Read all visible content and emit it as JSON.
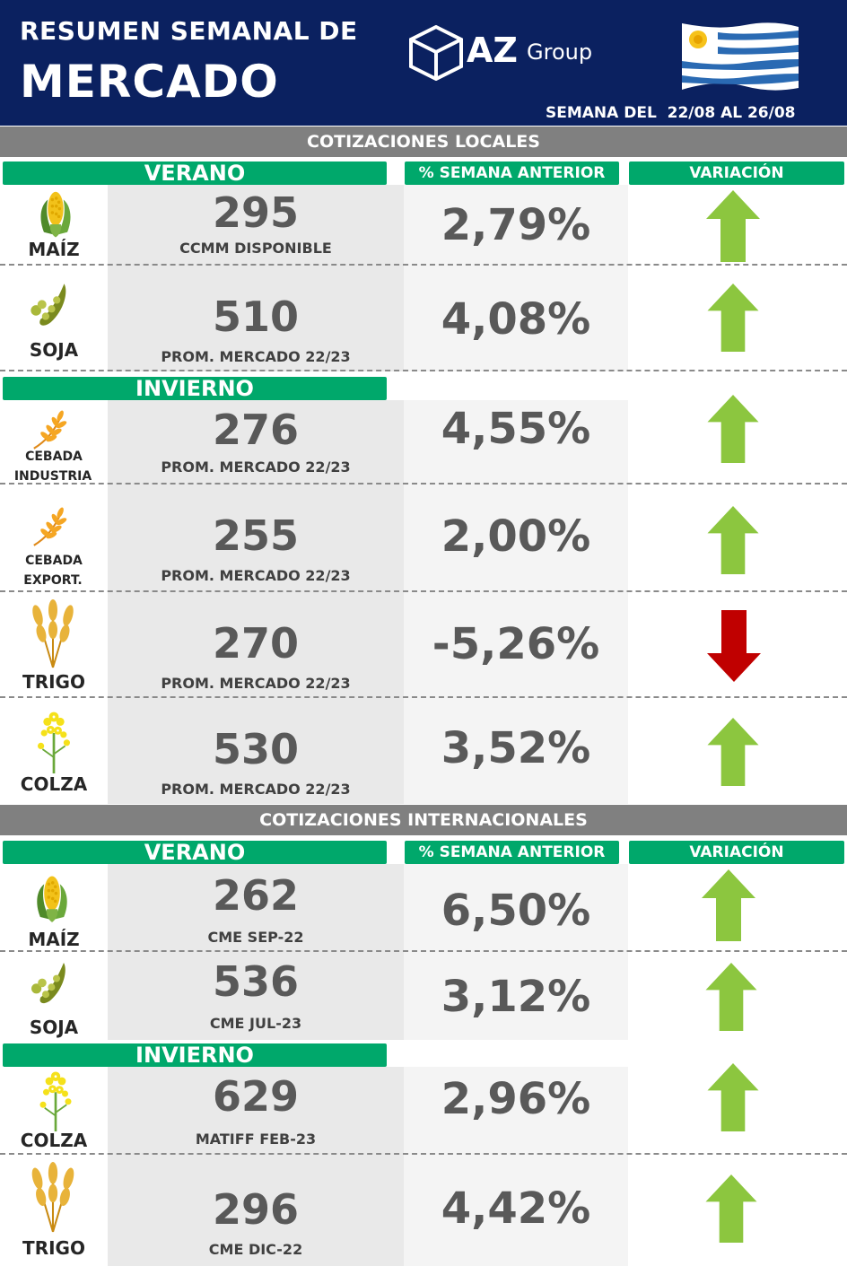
{
  "header": {
    "title_line1": "RESUMEN SEMANAL DE",
    "title_line2": "MERCADO",
    "brand_main": "AZ",
    "brand_sub": "Group",
    "week": "SEMANA DEL  22/08 AL 26/08",
    "flag_icon": "uruguay-flag-icon"
  },
  "colors": {
    "header_bg": "#0b2160",
    "green": "#00a86b",
    "section_gray": "#808080",
    "up": "#8cc63f",
    "down": "#c00000"
  },
  "local": {
    "section_title": "COTIZACIONES LOCALES",
    "season_verano": "VERANO",
    "season_invierno": "INVIERNO",
    "col_pct": "% SEMANA ANTERIOR",
    "col_var": "VARIACIÓN",
    "rows": [
      {
        "crop": "MAÍZ",
        "icon": "corn-icon",
        "price": "295",
        "ref": "CCMM DISPONIBLE",
        "pct": "2,79%",
        "direction": "up"
      },
      {
        "crop": "SOJA",
        "icon": "soy-icon",
        "price": "510",
        "ref": "PROM. MERCADO 22/23",
        "pct": "4,08%",
        "direction": "up"
      },
      {
        "crop_l1": "CEBADA",
        "crop_l2": "INDUSTRIA",
        "icon": "barley-icon",
        "price": "276",
        "ref": "PROM. MERCADO 22/23",
        "pct": "4,55%",
        "direction": "up"
      },
      {
        "crop_l1": "CEBADA",
        "crop_l2": "EXPORT.",
        "icon": "barley-icon",
        "price": "255",
        "ref": "PROM. MERCADO 22/23",
        "pct": "2,00%",
        "direction": "up"
      },
      {
        "crop": "TRIGO",
        "icon": "wheat-icon",
        "price": "270",
        "ref": "PROM. MERCADO 22/23",
        "pct": "-5,26%",
        "direction": "down"
      },
      {
        "crop": "COLZA",
        "icon": "rapeseed-icon",
        "price": "530",
        "ref": "PROM. MERCADO 22/23",
        "pct": "3,52%",
        "direction": "up"
      }
    ]
  },
  "intl": {
    "section_title": "COTIZACIONES INTERNACIONALES",
    "season_verano": "VERANO",
    "season_invierno": "INVIERNO",
    "col_pct": "% SEMANA ANTERIOR",
    "col_var": "VARIACIÓN",
    "rows": [
      {
        "crop": "MAÍZ",
        "icon": "corn-icon",
        "price": "262",
        "ref": "CME SEP-22",
        "pct": "6,50%",
        "direction": "up"
      },
      {
        "crop": "SOJA",
        "icon": "soy-icon",
        "price": "536",
        "ref": "CME JUL-23",
        "pct": "3,12%",
        "direction": "up"
      },
      {
        "crop": "COLZA",
        "icon": "rapeseed-icon",
        "price": "629",
        "ref": "MATIFF FEB-23",
        "pct": "2,96%",
        "direction": "up"
      },
      {
        "crop": "TRIGO",
        "icon": "wheat-icon",
        "price": "296",
        "ref": "CME DIC-22",
        "pct": "4,42%",
        "direction": "up"
      }
    ]
  }
}
